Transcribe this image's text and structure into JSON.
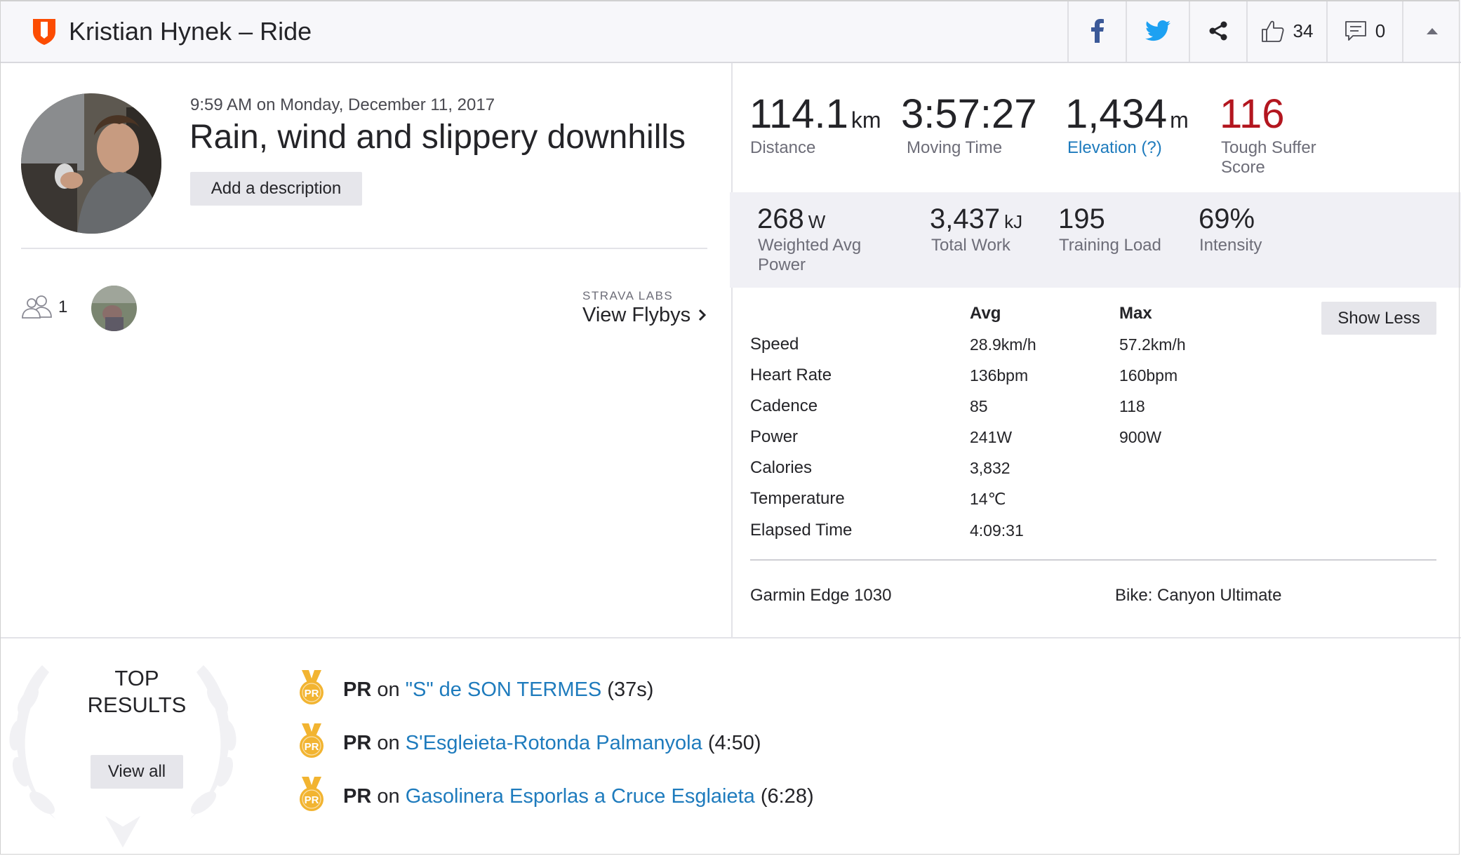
{
  "header": {
    "title": "Kristian Hynek – Ride",
    "icons": [
      "shield-logo-icon",
      "facebook-icon",
      "twitter-icon",
      "share-icon",
      "thumbs-up-icon",
      "comment-icon",
      "caret-up-icon"
    ],
    "kudos_count": "34",
    "comment_count": "0",
    "brand_color": "#fc4c02"
  },
  "activity": {
    "timestamp": "9:59 AM on Monday, December 11, 2017",
    "name": "Rain, wind and slippery downhills",
    "add_description": "Add a description"
  },
  "group": {
    "count": "1",
    "labs_label": "STRAVA LABS",
    "flybys_link": "View Flybys"
  },
  "primary_stats": [
    {
      "value": "114.1",
      "unit": "km",
      "label": "Distance"
    },
    {
      "value": "3:57:27",
      "unit": "",
      "label": "Moving Time"
    },
    {
      "value": "1,434",
      "unit": "m",
      "label": "Elevation (?)"
    },
    {
      "value": "116",
      "unit": "",
      "label": "Tough Suffer Score"
    }
  ],
  "secondary_stats": [
    {
      "value": "268",
      "unit": "W",
      "label": "Weighted Avg Power"
    },
    {
      "value": "3,437",
      "unit": "kJ",
      "label": "Total Work"
    },
    {
      "value": "195",
      "unit": "",
      "label": "Training Load"
    },
    {
      "value": "69%",
      "unit": "",
      "label": "Intensity"
    }
  ],
  "more_stats": {
    "avg_header": "Avg",
    "max_header": "Max",
    "show_less": "Show Less",
    "rows": [
      {
        "label": "Speed",
        "avg": "28.9km/h",
        "max": "57.2km/h"
      },
      {
        "label": "Heart Rate",
        "avg": "136bpm",
        "max": "160bpm"
      },
      {
        "label": "Cadence",
        "avg": "85",
        "max": "118"
      },
      {
        "label": "Power",
        "avg": "241W",
        "max": "900W"
      },
      {
        "label": "Calories",
        "avg": "3,832",
        "max": ""
      },
      {
        "label": "Temperature",
        "avg": "14℃",
        "max": ""
      },
      {
        "label": "Elapsed Time",
        "avg": "4:09:31",
        "max": ""
      }
    ],
    "device": "Garmin Edge 1030",
    "bike": "Bike: Canyon Ultimate"
  },
  "results": {
    "heading_line1": "TOP",
    "heading_line2": "RESULTS",
    "view_all": "View all",
    "items": [
      {
        "badge": "PR",
        "on": "on",
        "segment": "\"S\" de SON TERMES",
        "time": "(37s)"
      },
      {
        "badge": "PR",
        "on": "on",
        "segment": "S'Esgleieta-Rotonda Palmanyola",
        "time": "(4:50)"
      },
      {
        "badge": "PR",
        "on": "on",
        "segment": "Gasolinera Esporlas a Cruce Esglaieta",
        "time": "(6:28)"
      }
    ]
  }
}
